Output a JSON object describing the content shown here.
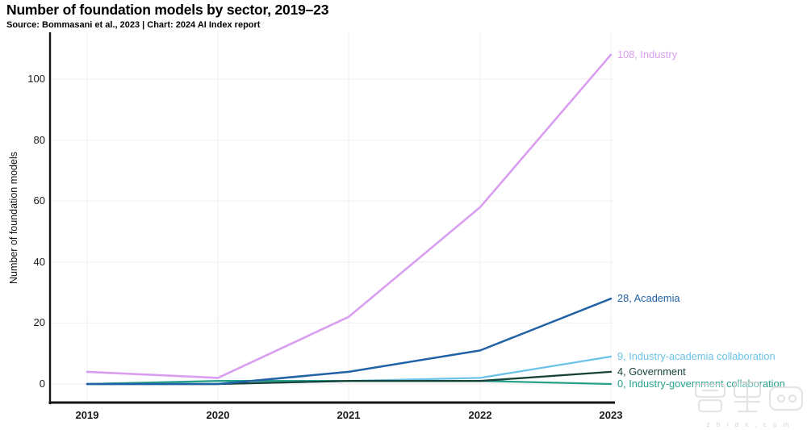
{
  "header": {
    "title": "Number of foundation models by sector, 2019–23",
    "source": "Source: Bommasani et al., 2023 | Chart: 2024 AI Index report"
  },
  "chart_data": {
    "type": "line",
    "title": "Number of foundation models by sector, 2019–23",
    "x": [
      2019,
      2020,
      2021,
      2022,
      2023
    ],
    "xlabel": "",
    "ylabel": "Number of foundation models",
    "ylim": [
      0,
      115
    ],
    "yticks": [
      0,
      20,
      40,
      60,
      80,
      100
    ],
    "grid": true,
    "legend_position": "end-of-line-labels",
    "series": [
      {
        "name": "Industry-government collaboration",
        "values": [
          0,
          1,
          1,
          1,
          0
        ],
        "color": "#26a28b",
        "end_label": "0, Industry-government collaboration",
        "width": 2.3
      },
      {
        "name": "Industry-academia collaboration",
        "values": [
          0,
          0,
          1,
          2,
          9
        ],
        "color": "#6cc2e8",
        "end_label": "9, Industry-academia collaboration",
        "width": 2.3
      },
      {
        "name": "Government",
        "values": [
          0,
          0,
          1,
          1,
          4
        ],
        "color": "#17433b",
        "end_label": "4, Government",
        "width": 2.3
      },
      {
        "name": "Academia",
        "values": [
          0,
          0,
          4,
          11,
          28
        ],
        "color": "#2062a6",
        "end_label": "28, Academia",
        "width": 2.5
      },
      {
        "name": "Industry",
        "values": [
          4,
          2,
          22,
          58,
          108
        ],
        "color": "#d99ef0",
        "end_label": "108, Industry",
        "width": 2.6
      }
    ]
  },
  "colors": {
    "axis": "#141414",
    "grid": "#f5f2f3",
    "tick_text": "#1a1a1a"
  },
  "watermark": {
    "text": "z h i d x . c o m"
  }
}
